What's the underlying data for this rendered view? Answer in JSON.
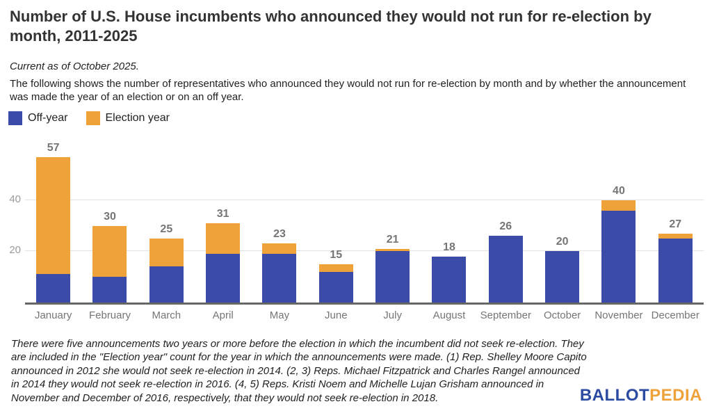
{
  "header": {
    "title": "Number of U.S. House incumbents who announced they would not run for re-election by month, 2011-2025",
    "subtitle": "Current as of October 2025.",
    "description": "The following shows the number of representatives who announced they would not run for re-election by month and by whether the announcement was made the year of an election or on an off year."
  },
  "legend": [
    {
      "label": "Off-year",
      "color": "#3B4CA8"
    },
    {
      "label": "Election year",
      "color": "#F0A23A"
    }
  ],
  "chart_data": {
    "type": "bar",
    "stacked": true,
    "title": "Number of U.S. House incumbents who announced they would not run for re-election by month, 2011-2025",
    "categories": [
      "January",
      "February",
      "March",
      "April",
      "May",
      "June",
      "July",
      "August",
      "September",
      "October",
      "November",
      "December"
    ],
    "series": [
      {
        "name": "Off-year",
        "color": "#3B4CA8",
        "values": [
          11,
          10,
          14,
          19,
          19,
          12,
          20,
          18,
          26,
          20,
          36,
          25
        ]
      },
      {
        "name": "Election year",
        "color": "#F0A23A",
        "values": [
          46,
          20,
          11,
          12,
          4,
          3,
          1,
          0,
          0,
          0,
          4,
          2
        ]
      }
    ],
    "totals": [
      57,
      30,
      25,
      31,
      23,
      15,
      21,
      18,
      26,
      20,
      40,
      27
    ],
    "xlabel": "",
    "ylabel": "",
    "yticks": [
      20,
      40
    ],
    "ylim": [
      0,
      65
    ],
    "grid": true,
    "legend_position": "top-left",
    "value_labels": "total above each bar"
  },
  "footer": {
    "note": "There were five announcements two years or more before the election in which the incumbent did not seek re-election. They are included in the \"Election year\" count for the year in which the announcements were made. (1) Rep. Shelley Moore Capito announced in 2012 she would not seek re-election in 2014. (2, 3) Reps. Michael Fitzpatrick and Charles Rangel announced in 2014 they would not seek re-election in 2016. (4, 5) Reps. Kristi Noem and Michelle Lujan Grisham announced in November and December of 2016, respectively, that they would not seek re-election in 2018."
  },
  "logo": {
    "part1": "BALLOT",
    "part2": "PEDIA",
    "part1_color": "#2B4AA2",
    "part2_color": "#F0A23A"
  }
}
